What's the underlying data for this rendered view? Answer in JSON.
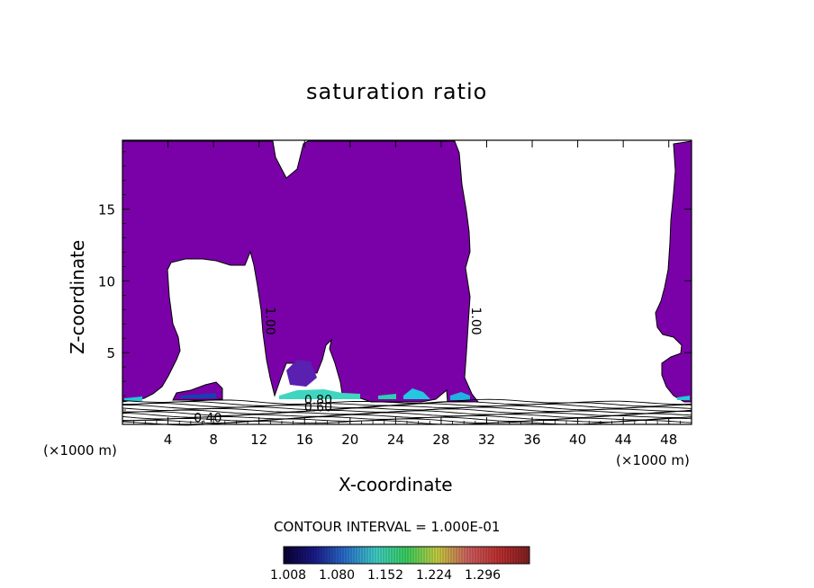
{
  "chart_data": {
    "type": "contour",
    "title": "saturation ratio",
    "xlabel": "X-coordinate",
    "ylabel": "Z-coordinate",
    "x_unit": "(×1000 m)",
    "xlim": [
      0,
      50
    ],
    "ylim": [
      0,
      19.8
    ],
    "x_ticks": [
      4,
      8,
      12,
      16,
      20,
      24,
      28,
      32,
      36,
      40,
      44,
      48
    ],
    "y_ticks": [
      5,
      10,
      15
    ],
    "contour_interval_text": "CONTOUR INTERVAL = 1.000E-01",
    "contour_labels": [
      {
        "text": "1.00",
        "x": 12.6,
        "z": 7.2
      },
      {
        "text": "1.00",
        "x": 30.7,
        "z": 7.2
      },
      {
        "text": "0.80",
        "x": 17.2,
        "z": 1.4
      },
      {
        "text": "0.60",
        "x": 17.2,
        "z": 0.9
      },
      {
        "text": "0.40",
        "x": 7.5,
        "z": 0.15
      }
    ],
    "colorbar": {
      "ticks": [
        "1.008",
        "1.080",
        "1.152",
        "1.224",
        "1.296"
      ],
      "colors": [
        "#0a0030",
        "#1a1a8a",
        "#2a6fd0",
        "#3fd0c8",
        "#3ad060",
        "#c8d040",
        "#d06060",
        "#c03030",
        "#802020"
      ]
    },
    "fill_color": "#7a00a8",
    "saturated_regions": [
      {
        "name": "left-column",
        "x": [
          0,
          4.5
        ],
        "z_top": 19.8,
        "z_bottom": 1.8
      },
      {
        "name": "central-column",
        "x": [
          13,
          31
        ],
        "z_top": 19.8,
        "z_bottom": 1.6
      },
      {
        "name": "right-edge-column",
        "x": [
          47.5,
          50
        ],
        "z_top": 19.8,
        "z_bottom": 1.6
      }
    ]
  }
}
